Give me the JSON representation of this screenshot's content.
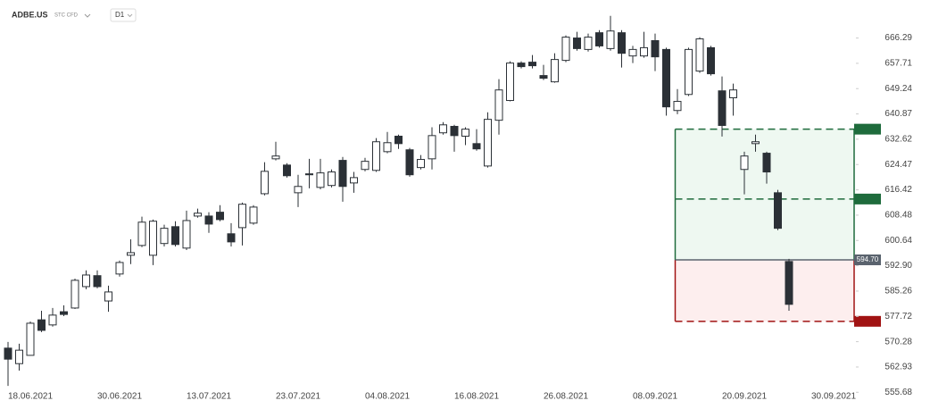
{
  "header": {
    "symbol": "ADBE.US",
    "instrument": "STC CFD",
    "interval": "D1"
  },
  "chart_data": {
    "type": "candlestick",
    "log_scale": true,
    "grid": false,
    "up_color": "#ffffff",
    "down_color": "#2b3036",
    "edge_color": "#2b3036",
    "categories": [
      null,
      null,
      "18.06.2021",
      null,
      null,
      null,
      null,
      null,
      null,
      null,
      "30.06.2021",
      null,
      null,
      null,
      null,
      null,
      null,
      null,
      "13.07.2021",
      null,
      null,
      null,
      null,
      null,
      null,
      null,
      "23.07.2021",
      null,
      null,
      null,
      null,
      null,
      null,
      null,
      "04.08.2021",
      null,
      null,
      null,
      null,
      null,
      null,
      null,
      "16.08.2021",
      null,
      null,
      null,
      null,
      null,
      null,
      null,
      "26.08.2021",
      null,
      null,
      null,
      null,
      null,
      null,
      null,
      "08.09.2021",
      null,
      null,
      null,
      null,
      null,
      null,
      null,
      "20.09.2021",
      null,
      null,
      null,
      null,
      null,
      null,
      null,
      "30.09.2021"
    ],
    "open": [
      568.4,
      563.9,
      566.3,
      576.7,
      575.2,
      579.1,
      580.2,
      586.6,
      589.9,
      582.3,
      590.4,
      596.1,
      599.1,
      596.1,
      599.7,
      604.9,
      598.3,
      608.2,
      608.2,
      609.4,
      602.7,
      604.6,
      606.0,
      615.2,
      626.3,
      624.3,
      615.5,
      621.5,
      617.2,
      617.8,
      625.8,
      618.6,
      622.9,
      622.6,
      628.6,
      633.6,
      629.2,
      623.5,
      626.3,
      634.7,
      636.8,
      633.6,
      631.2,
      624.0,
      638.8,
      645.3,
      657.8,
      658.1,
      653.6,
      651.5,
      658.7,
      666.3,
      662.4,
      668.1,
      662.7,
      668.1,
      660.2,
      660.2,
      665.4,
      662.4,
      642.0,
      647.3,
      655.1,
      663.0,
      648.5,
      646.2,
      622.9,
      631.2,
      628.1,
      615.5,
      594.2,
      null,
      null,
      null,
      null
    ],
    "high": [
      570.2,
      569.7,
      576.2,
      579.4,
      580.2,
      581.0,
      589.0,
      591.5,
      591.5,
      586.9,
      594.5,
      601.0,
      608.0,
      607.1,
      605.5,
      606.6,
      609.9,
      610.5,
      609.4,
      611.6,
      606.0,
      612.4,
      611.6,
      625.2,
      631.8,
      624.9,
      621.2,
      626.3,
      626.3,
      622.9,
      626.9,
      622.1,
      626.6,
      633.0,
      635.0,
      634.1,
      629.8,
      627.5,
      636.5,
      638.2,
      637.3,
      636.5,
      635.9,
      641.4,
      652.4,
      658.4,
      658.4,
      660.5,
      657.2,
      661.1,
      667.2,
      668.4,
      667.8,
      669.0,
      673.9,
      669.0,
      663.6,
      668.4,
      667.8,
      663.0,
      649.1,
      663.0,
      666.6,
      663.6,
      653.3,
      650.9,
      628.6,
      634.1,
      628.6,
      616.4,
      595.0,
      null,
      null,
      null,
      null
    ],
    "low": [
      557.5,
      561.9,
      566.2,
      573.1,
      574.7,
      577.8,
      579.9,
      585.8,
      586.1,
      579.1,
      589.6,
      593.4,
      598.6,
      593.1,
      598.8,
      598.8,
      597.7,
      607.7,
      603.0,
      606.6,
      598.8,
      599.1,
      605.5,
      614.7,
      625.8,
      620.3,
      611.0,
      616.9,
      616.6,
      617.2,
      612.7,
      615.5,
      622.3,
      622.1,
      628.1,
      629.5,
      620.6,
      622.9,
      622.9,
      634.1,
      628.6,
      630.7,
      628.9,
      623.5,
      634.1,
      645.0,
      656.0,
      656.0,
      652.1,
      651.2,
      658.1,
      662.0,
      661.7,
      663.0,
      662.0,
      656.3,
      657.8,
      659.6,
      655.1,
      640.3,
      640.8,
      646.8,
      654.5,
      653.6,
      633.5,
      640.3,
      615.0,
      628.6,
      618.4,
      603.8,
      579.4,
      null,
      null,
      null,
      null
    ],
    "close": [
      565.2,
      567.8,
      575.7,
      573.6,
      578.1,
      578.3,
      588.5,
      590.1,
      586.6,
      585.0,
      593.9,
      596.9,
      606.3,
      606.6,
      604.4,
      599.4,
      606.8,
      609.1,
      605.7,
      607.1,
      600.2,
      611.9,
      611.0,
      622.3,
      627.2,
      620.9,
      617.5,
      621.2,
      621.8,
      622.1,
      617.5,
      620.3,
      625.5,
      631.8,
      631.5,
      631.2,
      621.2,
      626.1,
      633.8,
      637.3,
      633.8,
      635.9,
      629.5,
      639.1,
      648.8,
      657.8,
      656.6,
      656.9,
      652.7,
      659.0,
      666.6,
      662.7,
      666.6,
      663.6,
      668.7,
      661.1,
      662.4,
      663.0,
      659.9,
      643.2,
      645.0,
      662.4,
      666.0,
      654.2,
      637.1,
      648.8,
      627.2,
      631.8,
      622.1,
      604.4,
      581.3,
      null,
      null,
      null,
      null
    ],
    "ylim": [
      555.5,
      679.4
    ],
    "yticks": [
      666.29,
      657.71,
      649.24,
      640.87,
      632.62,
      624.47,
      616.42,
      608.48,
      600.64,
      {
        "value": 592.9,
        "label": "592.90"
      },
      585.26,
      577.72,
      570.28,
      562.93,
      555.68
    ],
    "levels": [
      {
        "value": 635.89,
        "color": "#1e6b3c",
        "zone": "#eef8f1",
        "dashed": true
      },
      {
        "value": 613.53,
        "color": "#1e6b3c",
        "zone": "#eef8f1",
        "dashed": true
      },
      {
        "value": 594.7,
        "label": "594.70",
        "color": "#5a636e",
        "zone": "#fdeeee",
        "edge": "#a11313",
        "dashed": false
      },
      {
        "value": 576.26,
        "color": "#a11313",
        "dashed": true
      }
    ]
  }
}
